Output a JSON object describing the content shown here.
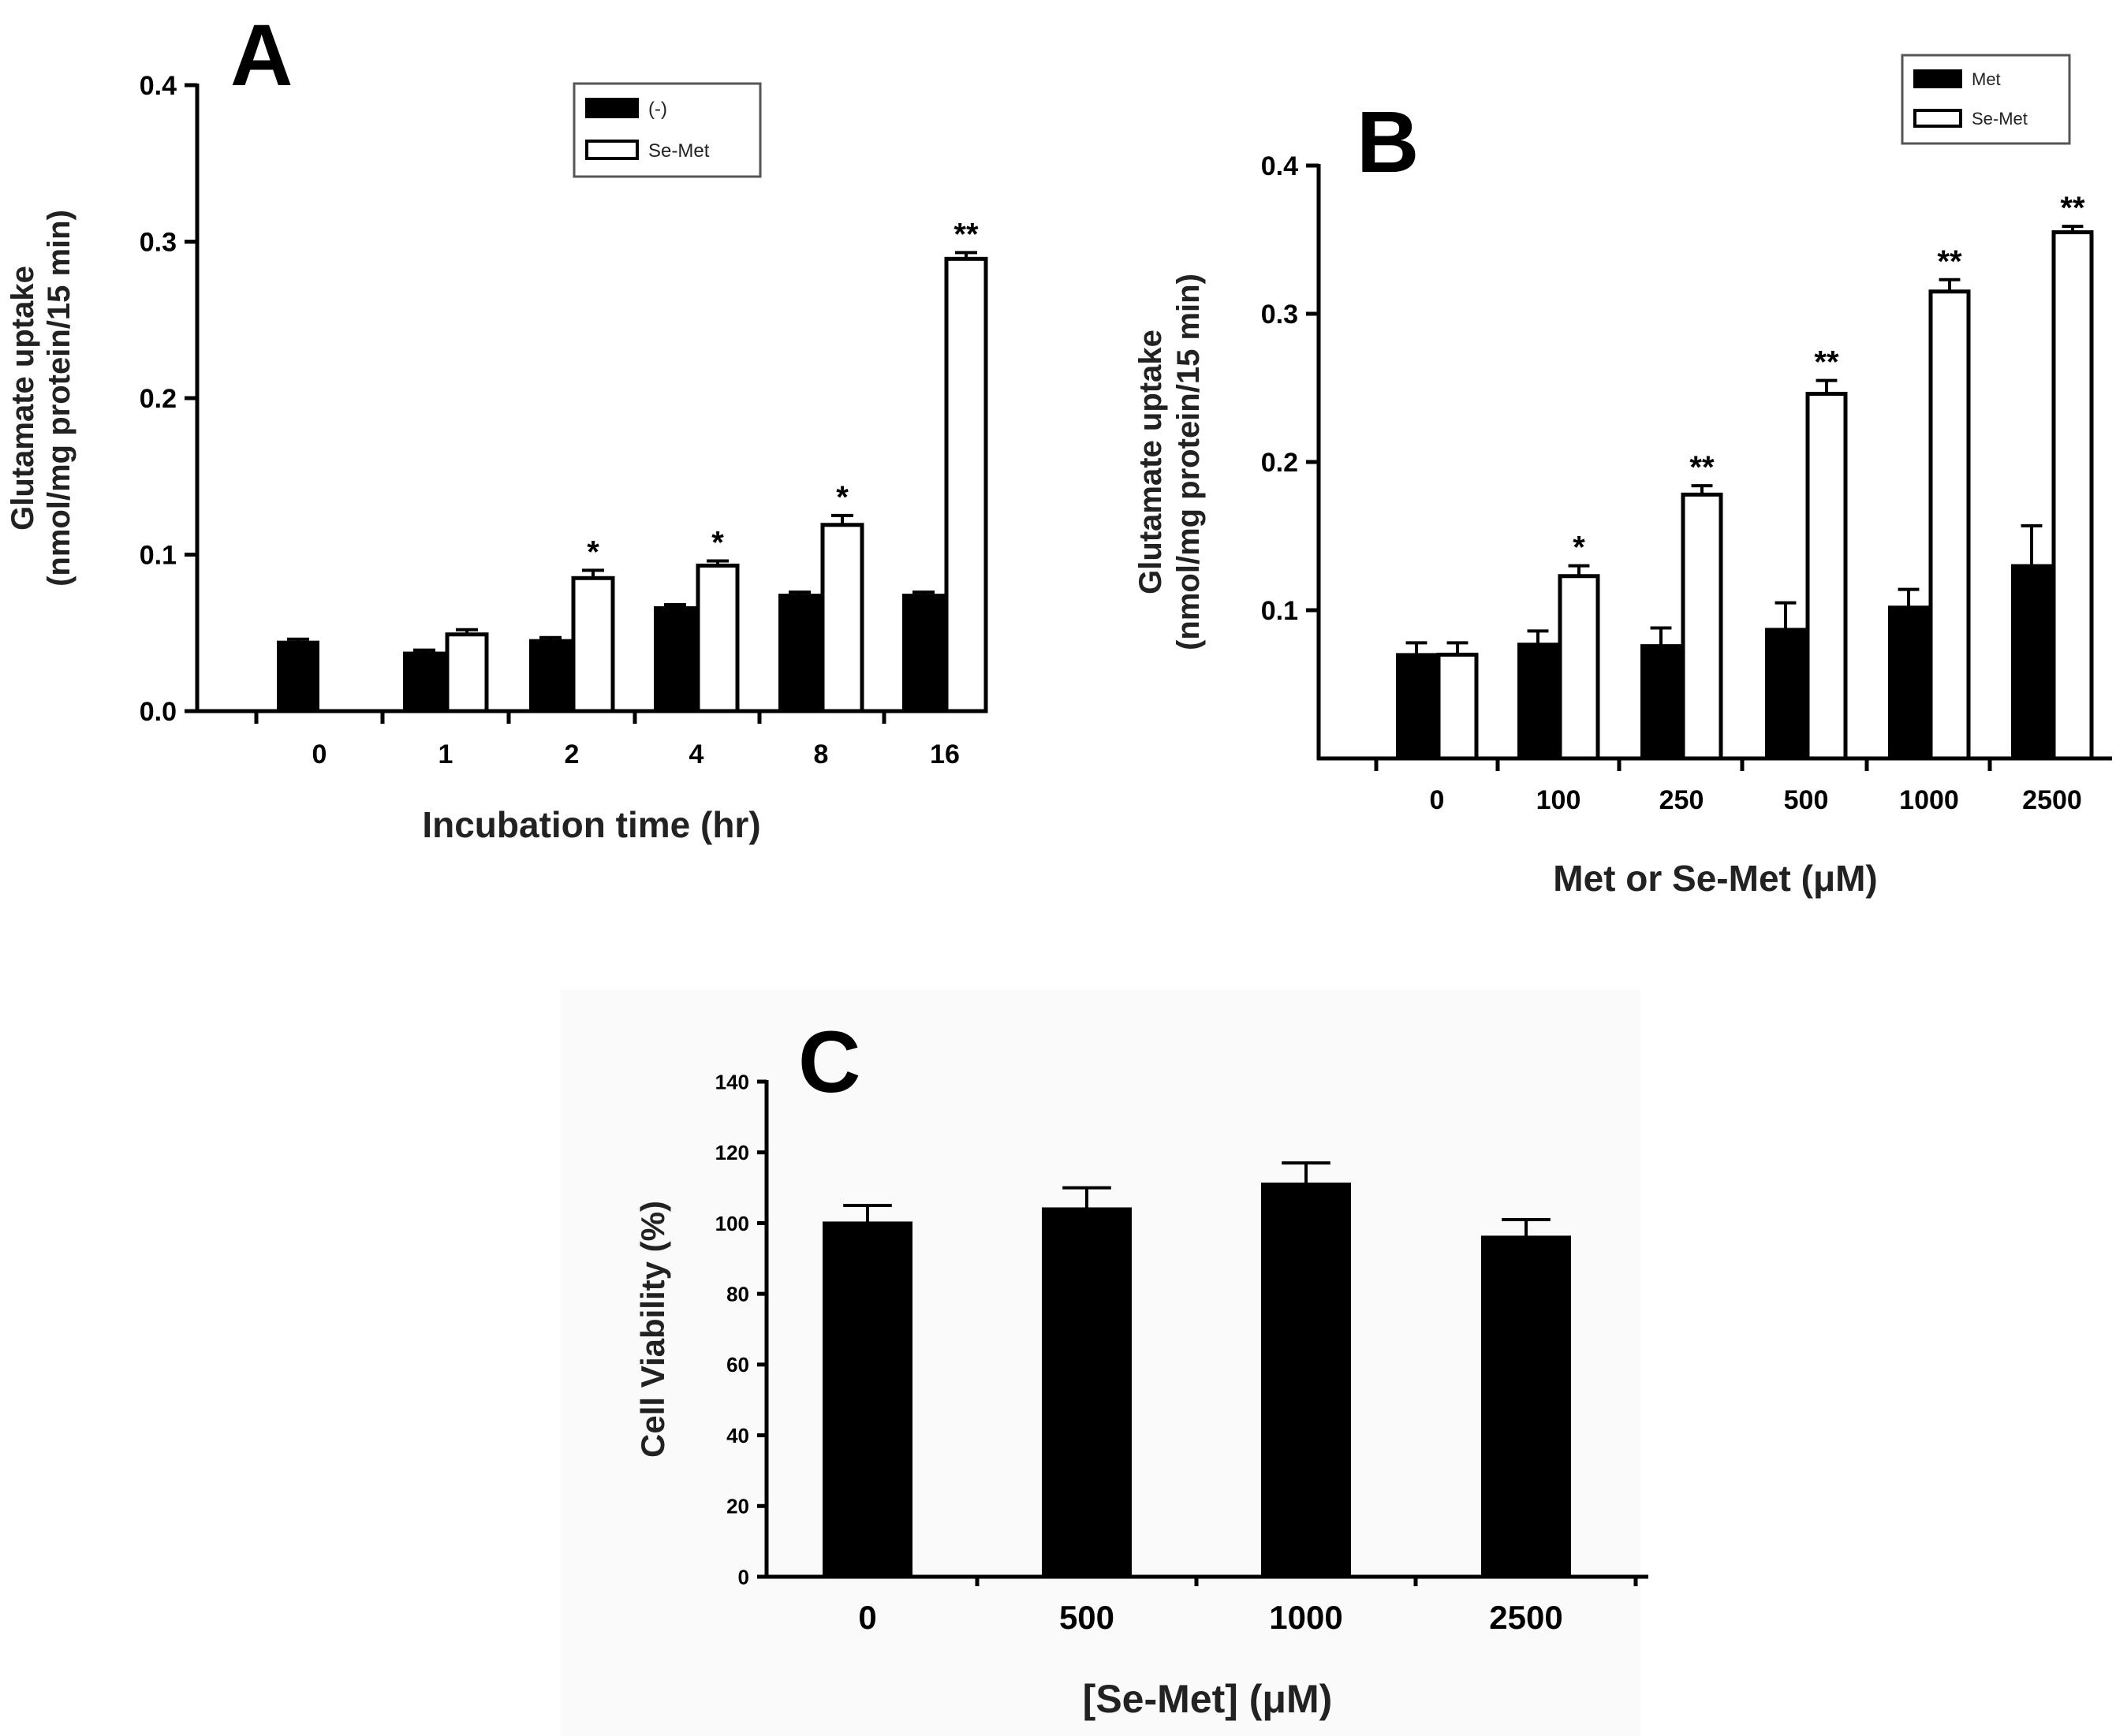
{
  "chart_data": [
    {
      "type": "bar",
      "panel": "A",
      "xlabel": "Incubation time (hr)",
      "ylabel": [
        "Glutamate uptake",
        "(nmol/mg protein/15 min)"
      ],
      "ylim": [
        0,
        0.4
      ],
      "yticks": [
        "0.0",
        "0.1",
        "0.2",
        "0.3",
        "0.4"
      ],
      "categories": [
        "0",
        "1",
        "2",
        "4",
        "8",
        "16"
      ],
      "legend_position": "top-right",
      "series": [
        {
          "name": "(-)",
          "fill": "#000000",
          "values": [
            0.044,
            0.037,
            0.045,
            0.066,
            0.074,
            0.074
          ],
          "errors": [
            0.002,
            0.002,
            0.002,
            0.002,
            0.002,
            0.002
          ]
        },
        {
          "name": "Se-Met",
          "fill": "#ffffff",
          "values": [
            null,
            0.049,
            0.085,
            0.093,
            0.119,
            0.289
          ],
          "errors": [
            null,
            0.003,
            0.005,
            0.003,
            0.006,
            0.004
          ]
        }
      ],
      "significance": [
        "",
        "",
        "*",
        "*",
        "*",
        "**"
      ]
    },
    {
      "type": "bar",
      "panel": "B",
      "xlabel": "Met or Se-Met (μM)",
      "ylabel": [
        "Glutamate uptake",
        "(nmol/mg protein/15 min)"
      ],
      "ylim": [
        0,
        0.4
      ],
      "yticks": [
        "0.1",
        "0.2",
        "0.3",
        "0.4"
      ],
      "categories": [
        "0",
        "100",
        "250",
        "500",
        "1000",
        "2500"
      ],
      "legend_position": "top-right",
      "series": [
        {
          "name": "Met",
          "fill": "#000000",
          "values": [
            0.07,
            0.077,
            0.076,
            0.087,
            0.102,
            0.13
          ],
          "errors": [
            0.008,
            0.009,
            0.012,
            0.018,
            0.012,
            0.027
          ]
        },
        {
          "name": "Se-Met",
          "fill": "#ffffff",
          "values": [
            0.07,
            0.123,
            0.178,
            0.246,
            0.315,
            0.355
          ],
          "errors": [
            0.008,
            0.007,
            0.006,
            0.009,
            0.008,
            0.004
          ]
        }
      ],
      "significance": [
        "",
        "*",
        "**",
        "**",
        "**",
        "**"
      ]
    },
    {
      "type": "bar",
      "panel": "C",
      "xlabel": "[Se-Met] (μM)",
      "ylabel": "Cell Viability (%)",
      "ylim": [
        0,
        140
      ],
      "yticks": [
        "0",
        "20",
        "40",
        "60",
        "80",
        "100",
        "120",
        "140"
      ],
      "categories": [
        "0",
        "500",
        "1000",
        "2500"
      ],
      "series": [
        {
          "name": "Se-Met",
          "fill": "#000000",
          "values": [
            100,
            104,
            111,
            96
          ],
          "errors": [
            5,
            6,
            6,
            5
          ]
        }
      ]
    }
  ]
}
